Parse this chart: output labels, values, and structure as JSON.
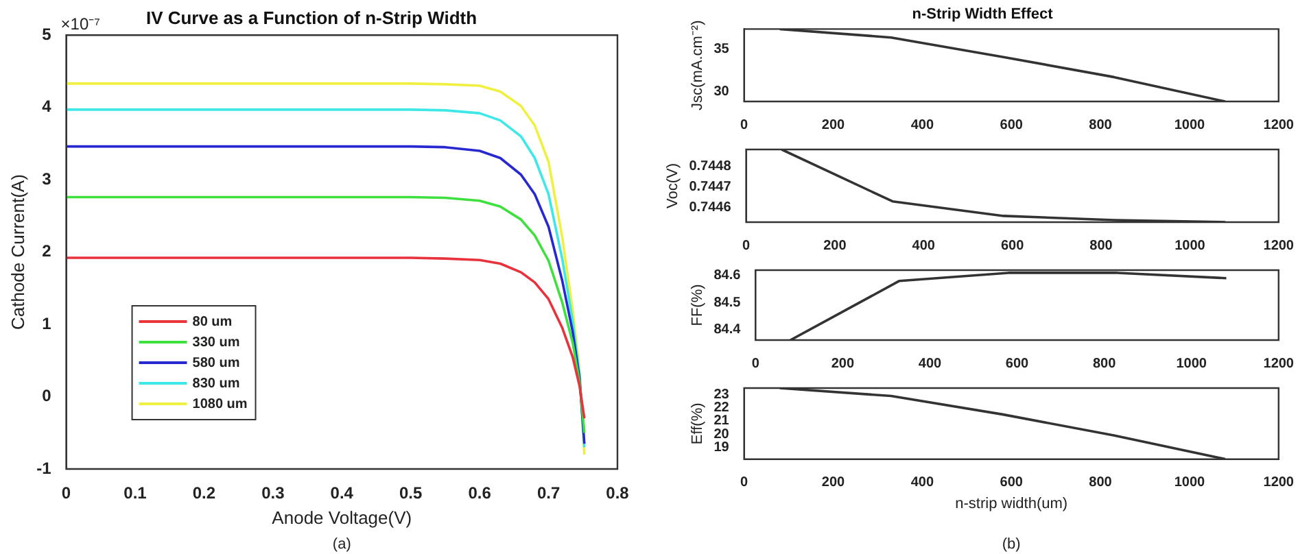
{
  "chart_data": [
    {
      "type": "line",
      "title": "IV Curve as a Function of n-Strip Width",
      "xlabel": "Anode Voltage(V)",
      "ylabel": "Cathode Current(A)",
      "xlim": [
        0,
        0.8
      ],
      "xticks": [
        0,
        0.1,
        0.2,
        0.3,
        0.4,
        0.5,
        0.6,
        0.7,
        0.8
      ],
      "ylim": [
        -1,
        5
      ],
      "yticks": [
        -1,
        0,
        1,
        2,
        3,
        4,
        5
      ],
      "legend": "bottom left",
      "annotations": [
        "×10⁻⁷",
        "(a)"
      ],
      "x": [
        0,
        0.1,
        0.2,
        0.3,
        0.4,
        0.5,
        0.55,
        0.6,
        0.63,
        0.66,
        0.68,
        0.7,
        0.72,
        0.735,
        0.745,
        0.752
      ],
      "series": [
        {
          "name": "80 um",
          "color": "#e8323c",
          "values": [
            1.92,
            1.92,
            1.92,
            1.92,
            1.92,
            1.92,
            1.91,
            1.89,
            1.84,
            1.72,
            1.58,
            1.35,
            0.95,
            0.55,
            0.15,
            -0.3
          ]
        },
        {
          "name": "330 um",
          "color": "#3ee03e",
          "values": [
            2.76,
            2.76,
            2.76,
            2.76,
            2.76,
            2.76,
            2.75,
            2.71,
            2.63,
            2.45,
            2.23,
            1.88,
            1.3,
            0.75,
            0.2,
            -0.5
          ]
        },
        {
          "name": "580 um",
          "color": "#2828d0",
          "values": [
            3.46,
            3.46,
            3.46,
            3.46,
            3.46,
            3.46,
            3.45,
            3.4,
            3.3,
            3.07,
            2.8,
            2.35,
            1.6,
            0.9,
            0.25,
            -0.65
          ]
        },
        {
          "name": "830 um",
          "color": "#3ee8e8",
          "values": [
            3.97,
            3.97,
            3.97,
            3.97,
            3.97,
            3.97,
            3.96,
            3.92,
            3.82,
            3.6,
            3.3,
            2.8,
            1.9,
            1.05,
            0.3,
            -0.7
          ]
        },
        {
          "name": "1080 um",
          "color": "#f0f040",
          "values": [
            4.33,
            4.33,
            4.33,
            4.33,
            4.33,
            4.33,
            4.32,
            4.3,
            4.22,
            4.02,
            3.75,
            3.25,
            2.2,
            1.2,
            0.35,
            -0.8
          ]
        }
      ]
    },
    {
      "type": "line",
      "title": "n-Strip Width Effect",
      "ylabel": "Jsc(mA.cm⁻²)",
      "xlim": [
        0,
        1200
      ],
      "xticks": [
        0,
        200,
        400,
        600,
        800,
        1000,
        1200
      ],
      "ylim": [
        28.8,
        37.4
      ],
      "yticks": [
        30,
        35
      ],
      "x": [
        80,
        330,
        580,
        830,
        1080
      ],
      "series": [
        {
          "color": "#333333",
          "values": [
            37.4,
            36.4,
            34.1,
            31.7,
            28.8
          ]
        }
      ]
    },
    {
      "type": "line",
      "ylabel": "Voc(V)",
      "xlim": [
        0,
        1200
      ],
      "xticks": [
        0,
        200,
        400,
        600,
        800,
        1000,
        1200
      ],
      "ylim": [
        0.74453,
        0.74488
      ],
      "yticks": [
        0.7446,
        0.7447,
        0.7448
      ],
      "x": [
        80,
        330,
        580,
        830,
        1080
      ],
      "series": [
        {
          "color": "#333333",
          "values": [
            0.74488,
            0.74463,
            0.74456,
            0.74454,
            0.74453
          ]
        }
      ]
    },
    {
      "type": "line",
      "ylabel": "FF(%)",
      "xlim": [
        0,
        1200
      ],
      "xticks": [
        0,
        200,
        400,
        600,
        800,
        1000,
        1200
      ],
      "ylim": [
        84.36,
        84.62
      ],
      "yticks": [
        84.4,
        84.5,
        84.6
      ],
      "x": [
        80,
        330,
        580,
        830,
        1080
      ],
      "series": [
        {
          "color": "#333333",
          "values": [
            84.36,
            84.58,
            84.61,
            84.61,
            84.59
          ]
        }
      ]
    },
    {
      "type": "line",
      "xlabel": "n-strip width(um)",
      "ylabel": "Eff(%)",
      "xlim": [
        0,
        1200
      ],
      "xticks": [
        0,
        200,
        400,
        600,
        800,
        1000,
        1200
      ],
      "ylim": [
        18.1,
        23.5
      ],
      "yticks": [
        19,
        20,
        21,
        22,
        23
      ],
      "annotations": [
        "(b)"
      ],
      "x": [
        80,
        330,
        580,
        830,
        1080
      ],
      "series": [
        {
          "color": "#333333",
          "values": [
            23.5,
            22.9,
            21.5,
            19.9,
            18.1
          ]
        }
      ]
    }
  ]
}
